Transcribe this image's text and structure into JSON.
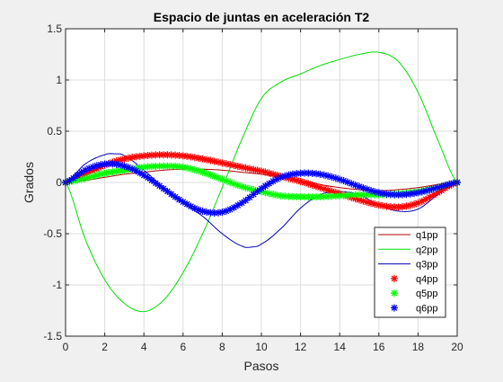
{
  "chart_data": {
    "type": "line",
    "title": "Espacio de juntas en aceleración T2",
    "xlabel": "Pasos",
    "ylabel": "Grados",
    "xlim": [
      0,
      20
    ],
    "ylim": [
      -1.5,
      1.5
    ],
    "xticks": [
      0,
      2,
      4,
      6,
      8,
      10,
      12,
      14,
      16,
      18,
      20
    ],
    "yticks": [
      -1.5,
      -1,
      -0.5,
      0,
      0.5,
      1,
      1.5
    ],
    "xtick_labels": [
      "0",
      "2",
      "4",
      "6",
      "8",
      "10",
      "12",
      "14",
      "16",
      "18",
      "20"
    ],
    "ytick_labels": [
      "-1.5",
      "-1",
      "-0.5",
      "0",
      "0.5",
      "1",
      "1.5"
    ],
    "grid": true,
    "legend_position": "bottom-right",
    "series": [
      {
        "name": "q1pp",
        "style": "line",
        "color": "#b30000",
        "x": [
          0,
          1,
          2,
          3,
          4,
          5,
          6,
          7,
          8,
          9,
          10,
          11,
          12,
          13,
          14,
          15,
          16,
          17,
          18,
          19,
          20
        ],
        "y": [
          0,
          0.02,
          0.05,
          0.08,
          0.1,
          0.12,
          0.13,
          0.13,
          0.12,
          0.1,
          0.08,
          0.05,
          0.02,
          -0.02,
          -0.05,
          -0.07,
          -0.08,
          -0.07,
          -0.05,
          -0.02,
          0
        ]
      },
      {
        "name": "q2pp",
        "style": "line",
        "color": "#00e000",
        "x": [
          0,
          1,
          2,
          3,
          4,
          5,
          6,
          7,
          8,
          9,
          10,
          11,
          12,
          13,
          14,
          15,
          16,
          17,
          18,
          19,
          20
        ],
        "y": [
          0,
          -0.55,
          -0.95,
          -1.18,
          -1.26,
          -1.15,
          -0.88,
          -0.5,
          -0.05,
          0.42,
          0.82,
          0.98,
          1.06,
          1.14,
          1.2,
          1.25,
          1.27,
          1.18,
          0.88,
          0.42,
          0
        ]
      },
      {
        "name": "q3pp",
        "style": "line",
        "color": "#0000b3",
        "x": [
          0,
          1,
          2,
          2.5,
          3,
          4,
          5,
          6,
          7,
          8,
          9,
          9.5,
          10,
          11,
          12,
          13,
          14,
          15,
          16,
          17,
          18,
          19,
          20
        ],
        "y": [
          0,
          0.18,
          0.27,
          0.28,
          0.26,
          0.12,
          -0.05,
          -0.2,
          -0.33,
          -0.5,
          -0.62,
          -0.63,
          -0.6,
          -0.45,
          -0.25,
          -0.12,
          -0.09,
          -0.12,
          -0.22,
          -0.28,
          -0.26,
          -0.12,
          0
        ]
      },
      {
        "name": "q4pp",
        "style": "markers",
        "marker": "*",
        "color": "#ff0000",
        "x": [
          0,
          1,
          2,
          3,
          4,
          5,
          6,
          7,
          8,
          9,
          10,
          11,
          12,
          13,
          14,
          15,
          16,
          17,
          18,
          19,
          20
        ],
        "y": [
          0,
          0.08,
          0.17,
          0.23,
          0.26,
          0.27,
          0.26,
          0.23,
          0.19,
          0.15,
          0.11,
          0.06,
          0.01,
          -0.05,
          -0.11,
          -0.17,
          -0.22,
          -0.24,
          -0.2,
          -0.1,
          0
        ]
      },
      {
        "name": "q5pp",
        "style": "markers",
        "marker": "*",
        "color": "#00ff00",
        "x": [
          0,
          1,
          2,
          3,
          4,
          5,
          6,
          7,
          8,
          9,
          10,
          11,
          12,
          13,
          14,
          15,
          16,
          17,
          18,
          19,
          20
        ],
        "y": [
          0,
          0.04,
          0.09,
          0.12,
          0.15,
          0.16,
          0.15,
          0.1,
          0.03,
          -0.04,
          -0.09,
          -0.13,
          -0.14,
          -0.14,
          -0.13,
          -0.12,
          -0.12,
          -0.11,
          -0.09,
          -0.05,
          0
        ]
      },
      {
        "name": "q6pp",
        "style": "markers",
        "marker": "*",
        "color": "#0000ff",
        "x": [
          0,
          1,
          2,
          3,
          4,
          5,
          6,
          7,
          8,
          9,
          10,
          11,
          12,
          13,
          14,
          15,
          16,
          17,
          18,
          19,
          20
        ],
        "y": [
          0,
          0.12,
          0.18,
          0.16,
          0.07,
          -0.06,
          -0.19,
          -0.28,
          -0.29,
          -0.2,
          -0.06,
          0.05,
          0.09,
          0.08,
          0.03,
          -0.04,
          -0.1,
          -0.12,
          -0.1,
          -0.05,
          0
        ]
      }
    ]
  }
}
